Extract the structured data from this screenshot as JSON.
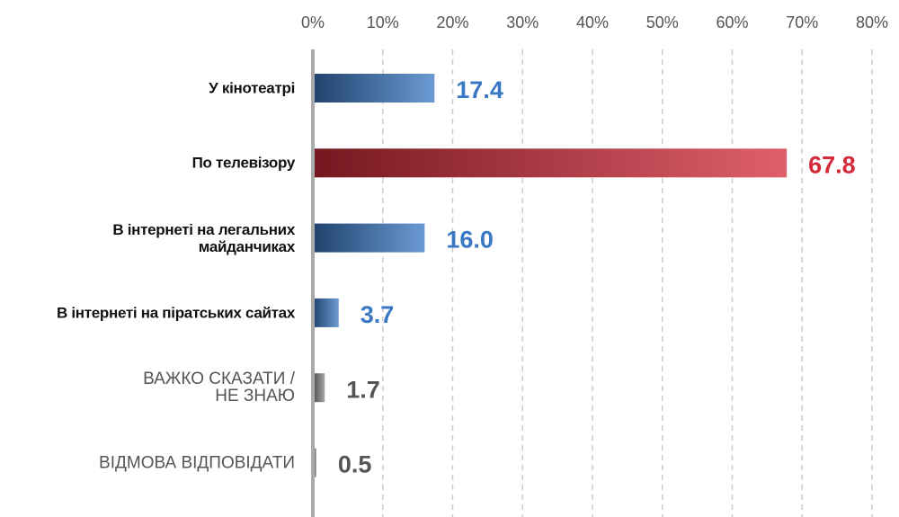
{
  "chart_data": {
    "type": "bar",
    "orientation": "horizontal",
    "categories": [
      "У кінотеатрі",
      "По телевізору",
      "В інтернеті на легальних\nмайданчиках",
      "В інтернеті на піратських сайтах",
      "ВАЖКО СКАЗАТИ /\nНЕ ЗНАЮ",
      "ВІДМОВА ВІДПОВІДАТИ"
    ],
    "values": [
      17.4,
      67.8,
      16.0,
      3.7,
      1.7,
      0.5
    ],
    "value_labels": [
      "17.4",
      "67.8",
      "16.0",
      "3.7",
      "1.7",
      "0.5"
    ],
    "colors": [
      "#3a78c4",
      "#d42a3a",
      "#3a78c4",
      "#3a78c4",
      "#8a8a8a",
      "#8a8a8a"
    ],
    "label_colors": [
      "#3a78c4",
      "#d42a3a",
      "#3a78c4",
      "#3a78c4",
      "#555555",
      "#555555"
    ],
    "xlim": [
      0,
      80
    ],
    "xticks": [
      {
        "value": 0,
        "label": "0%"
      },
      {
        "value": 10,
        "label": "10%"
      },
      {
        "value": 20,
        "label": "20%"
      },
      {
        "value": 30,
        "label": "30%"
      },
      {
        "value": 40,
        "label": "40%"
      },
      {
        "value": 50,
        "label": "50%"
      },
      {
        "value": 60,
        "label": "60%"
      },
      {
        "value": 70,
        "label": "70%"
      },
      {
        "value": 80,
        "label": "80%"
      }
    ],
    "grid": true
  }
}
